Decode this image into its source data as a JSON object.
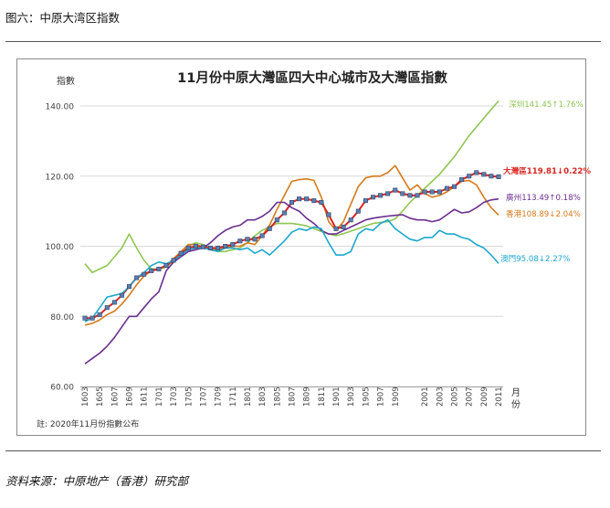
{
  "page": {
    "caption": "图六：中原大湾区指数",
    "source": "资料来源：中原地产（香港）研究部"
  },
  "chart_data": {
    "type": "line",
    "title": "11月份中原大灣區四大中心城市及大灣區指數",
    "ylabel": "指數",
    "xlabel": "月份",
    "note": "註: 2020年11月份指數公布",
    "ylim": [
      60,
      145
    ],
    "yticks": [
      "60.00",
      "80.00",
      "100.00",
      "120.00",
      "140.00"
    ],
    "grid": true,
    "categories": [
      "1603",
      "1604",
      "1605",
      "1606",
      "1607",
      "1608",
      "1609",
      "1610",
      "1611",
      "1612",
      "1701",
      "1702",
      "1703",
      "1704",
      "1705",
      "1706",
      "1707",
      "1708",
      "1709",
      "1710",
      "1711",
      "1712",
      "1801",
      "1802",
      "1803",
      "1804",
      "1805",
      "1806",
      "1807",
      "1808",
      "1809",
      "1810",
      "1811",
      "1812",
      "1901",
      "1902",
      "1903",
      "1904",
      "1905",
      "1906",
      "1907",
      "1908",
      "1909",
      "1910",
      "1911",
      "1912",
      "2001",
      "2002",
      "2003",
      "2004",
      "2005",
      "2006",
      "2007",
      "2008",
      "2009",
      "2010",
      "2011"
    ],
    "xtick_labels": [
      "1603",
      "1605",
      "1607",
      "1609",
      "1611",
      "1701",
      "1703",
      "1705",
      "1707",
      "1709",
      "1711",
      "1801",
      "1803",
      "1805",
      "1807",
      "1809",
      "1811",
      "1901",
      "1903",
      "1905",
      "1907",
      "1909",
      "2001",
      "2003",
      "2005",
      "2007",
      "2009",
      "2011"
    ],
    "series": [
      {
        "name": "深圳",
        "label": "深圳141.45↑1.76%",
        "color": "#8fc654",
        "values": [
          95,
          92.5,
          93.5,
          94.5,
          97,
          99.5,
          103.5,
          99.5,
          96,
          93.5,
          93.5,
          94,
          96,
          98,
          100,
          101,
          100.5,
          99.5,
          98.5,
          98.5,
          99,
          99.5,
          101,
          103,
          104.5,
          105.5,
          106.5,
          106.5,
          106.5,
          106.2,
          105.8,
          105,
          104.2,
          103.5,
          103,
          103.6,
          104.3,
          105,
          105.8,
          106.5,
          106.8,
          107,
          107.8,
          110,
          112.5,
          114.5,
          116.5,
          118.5,
          120.5,
          123,
          125.5,
          128.5,
          131.5,
          134,
          136.5,
          139,
          141.45
        ]
      },
      {
        "name": "香港",
        "label": "香港108.89↓2.04%",
        "color": "#d57a1c",
        "values": [
          77.5,
          78,
          79,
          80.5,
          81.5,
          83.5,
          86,
          89,
          91.5,
          93,
          93.5,
          94.5,
          96.5,
          98.5,
          100.5,
          100.5,
          99.8,
          99.5,
          99,
          99.5,
          100,
          100,
          101,
          100.5,
          103,
          106,
          110.5,
          114.5,
          118.5,
          119,
          119.2,
          118.8,
          114,
          107,
          104.5,
          107,
          112,
          117,
          119.5,
          120,
          120,
          121,
          123,
          119.5,
          116,
          117.5,
          115,
          114,
          114.5,
          115.5,
          117,
          118.5,
          118.8,
          117.5,
          114,
          111,
          108.89
        ]
      },
      {
        "name": "大灣區",
        "label": "大灣區119.81↓0.22%",
        "color": "#d82520",
        "values": [
          79.5,
          79.5,
          80.5,
          82.5,
          84,
          86,
          88.5,
          91,
          92,
          93,
          93.5,
          94.5,
          96,
          98,
          99.5,
          100,
          99.8,
          99.5,
          99.5,
          100,
          100.5,
          101.5,
          102,
          102,
          103,
          105,
          107.5,
          109.5,
          112.5,
          113.5,
          113.5,
          113,
          112.5,
          109,
          105,
          105.5,
          107.5,
          110,
          113,
          114,
          114.5,
          115,
          116,
          115,
          114.5,
          114.5,
          115.5,
          115.5,
          115.5,
          116.5,
          117,
          119,
          120,
          121,
          120.5,
          120,
          119.81
        ]
      },
      {
        "name": "廣州",
        "label": "廣州113.49↑0.18%",
        "color": "#6a2e8f",
        "values": [
          66.5,
          68,
          69.5,
          71.5,
          74,
          77,
          80,
          80,
          82.5,
          85,
          87,
          93,
          95.5,
          97,
          98.5,
          99,
          99.5,
          101,
          103,
          104.5,
          105.5,
          106,
          107.5,
          107.5,
          108.5,
          110,
          112.5,
          112.5,
          111,
          110,
          108,
          106.5,
          104.5,
          103.5,
          103.5,
          104.5,
          105.5,
          106.5,
          107.5,
          108,
          108.3,
          108.6,
          108.8,
          109,
          108,
          107.5,
          107.5,
          107,
          107.5,
          109,
          110.5,
          109.5,
          109.8,
          111,
          112.5,
          113.2,
          113.49
        ]
      },
      {
        "name": "澳門",
        "label": "澳門95.08↓2.27%",
        "color": "#1da7ce",
        "values": [
          78.5,
          79.5,
          82.5,
          85.5,
          86,
          86.5,
          88.5,
          91,
          92.5,
          94.5,
          95.5,
          95,
          96,
          97.5,
          99,
          99.5,
          99.5,
          99,
          98.5,
          99.5,
          99.5,
          99,
          99.5,
          98,
          99,
          97.5,
          99.5,
          101.5,
          104,
          105,
          104.5,
          105.5,
          105,
          101,
          97.5,
          97.5,
          98.5,
          103.5,
          105,
          104.5,
          106.5,
          107.5,
          105,
          103.5,
          102,
          101.5,
          102.5,
          102.5,
          104.5,
          103.5,
          103.5,
          102.5,
          102,
          100.5,
          99.5,
          97.5,
          95.08
        ]
      }
    ]
  }
}
